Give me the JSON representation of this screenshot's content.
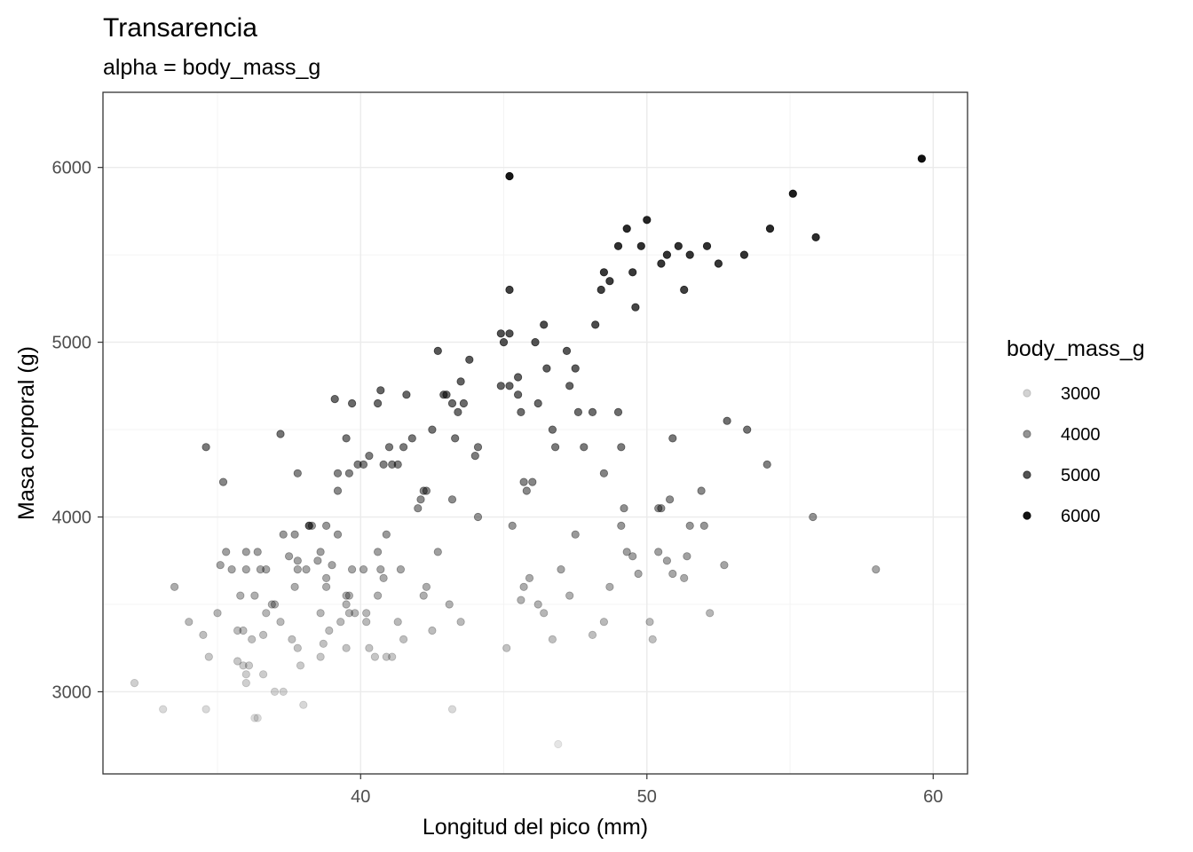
{
  "chart_data": {
    "type": "scatter",
    "title": "Transarencia",
    "subtitle": "alpha = body_mass_g",
    "xlabel": "Longitud del pico (mm)",
    "ylabel": "Masa corporal (g)",
    "xlim": [
      31.0,
      61.2
    ],
    "ylim": [
      2530,
      6430
    ],
    "x_ticks": [
      40,
      50,
      60
    ],
    "x_tick_labels": [
      "40",
      "50",
      "60"
    ],
    "y_ticks": [
      3000,
      4000,
      5000,
      6000
    ],
    "y_tick_labels": [
      "3000",
      "4000",
      "5000",
      "6000"
    ],
    "grid": true,
    "legend": {
      "title": "body_mass_g",
      "position": "right",
      "entries": [
        {
          "label": "3000",
          "value": 3000
        },
        {
          "label": "4000",
          "value": 4000
        },
        {
          "label": "5000",
          "value": 5000
        },
        {
          "label": "6000",
          "value": 6000
        }
      ]
    },
    "alpha_range": {
      "min_value": 2700,
      "max_value": 6300,
      "min_alpha": 0.1,
      "max_alpha": 1.0
    },
    "point_color": "#000000",
    "points": [
      [
        32.1,
        3050
      ],
      [
        33.1,
        2900
      ],
      [
        34.6,
        2900
      ],
      [
        33.5,
        3600
      ],
      [
        34.0,
        3400
      ],
      [
        34.5,
        3325
      ],
      [
        34.6,
        4400
      ],
      [
        34.7,
        3200
      ],
      [
        35.0,
        3450
      ],
      [
        35.1,
        3725
      ],
      [
        35.2,
        4200
      ],
      [
        35.3,
        3800
      ],
      [
        35.5,
        3700
      ],
      [
        35.7,
        3350
      ],
      [
        35.9,
        3350
      ],
      [
        35.8,
        3550
      ],
      [
        36.0,
        3800
      ],
      [
        36.0,
        3700
      ],
      [
        36.2,
        3300
      ],
      [
        36.3,
        3550
      ],
      [
        36.4,
        3800
      ],
      [
        36.5,
        3700
      ],
      [
        36.6,
        3325
      ],
      [
        35.7,
        3175
      ],
      [
        35.9,
        3150
      ],
      [
        36.0,
        3050
      ],
      [
        36.0,
        3100
      ],
      [
        36.1,
        3150
      ],
      [
        36.3,
        2850
      ],
      [
        36.4,
        2850
      ],
      [
        36.6,
        3100
      ],
      [
        36.7,
        3450
      ],
      [
        36.7,
        3700
      ],
      [
        36.9,
        3500
      ],
      [
        37.0,
        3500
      ],
      [
        37.0,
        3000
      ],
      [
        37.2,
        3400
      ],
      [
        37.3,
        3000
      ],
      [
        37.3,
        3900
      ],
      [
        37.5,
        3775
      ],
      [
        37.6,
        3300
      ],
      [
        37.7,
        3600
      ],
      [
        37.8,
        3250
      ],
      [
        37.8,
        3700
      ],
      [
        37.8,
        3750
      ],
      [
        37.9,
        3150
      ],
      [
        38.0,
        2925
      ],
      [
        38.1,
        3700
      ],
      [
        38.2,
        3950
      ],
      [
        38.3,
        3950
      ],
      [
        38.5,
        3750
      ],
      [
        38.6,
        3200
      ],
      [
        38.6,
        3800
      ],
      [
        38.6,
        3450
      ],
      [
        38.7,
        3275
      ],
      [
        38.8,
        3600
      ],
      [
        38.8,
        3650
      ],
      [
        38.9,
        3350
      ],
      [
        39.0,
        3725
      ],
      [
        39.2,
        3900
      ],
      [
        39.3,
        3400
      ],
      [
        39.5,
        3500
      ],
      [
        39.5,
        3250
      ],
      [
        39.5,
        3550
      ],
      [
        39.6,
        3550
      ],
      [
        39.6,
        3450
      ],
      [
        39.7,
        3700
      ],
      [
        39.8,
        3450
      ],
      [
        40.1,
        3700
      ],
      [
        40.2,
        3450
      ],
      [
        40.2,
        3400
      ],
      [
        40.3,
        3250
      ],
      [
        40.5,
        3200
      ],
      [
        40.6,
        3550
      ],
      [
        40.6,
        3800
      ],
      [
        40.7,
        3700
      ],
      [
        40.8,
        3650
      ],
      [
        40.9,
        3200
      ],
      [
        40.9,
        3900
      ],
      [
        41.1,
        3200
      ],
      [
        41.3,
        3400
      ],
      [
        41.4,
        3700
      ],
      [
        41.5,
        3300
      ],
      [
        42.2,
        3550
      ],
      [
        42.3,
        3600
      ],
      [
        43.1,
        3500
      ],
      [
        43.2,
        2900
      ],
      [
        43.5,
        3400
      ],
      [
        37.2,
        4475
      ],
      [
        37.8,
        4250
      ],
      [
        37.7,
        3900
      ],
      [
        38.2,
        3950
      ],
      [
        38.8,
        3950
      ],
      [
        39.1,
        4675
      ],
      [
        39.2,
        4150
      ],
      [
        39.2,
        4250
      ],
      [
        39.5,
        4450
      ],
      [
        39.6,
        4250
      ],
      [
        39.7,
        4650
      ],
      [
        39.9,
        4300
      ],
      [
        40.1,
        4300
      ],
      [
        40.3,
        4350
      ],
      [
        40.6,
        4650
      ],
      [
        40.7,
        4725
      ],
      [
        40.8,
        4300
      ],
      [
        41.0,
        4400
      ],
      [
        41.1,
        4300
      ],
      [
        41.3,
        4300
      ],
      [
        41.5,
        4400
      ],
      [
        41.6,
        4700
      ],
      [
        41.8,
        4450
      ],
      [
        42.0,
        4050
      ],
      [
        42.1,
        4100
      ],
      [
        42.2,
        4150
      ],
      [
        42.3,
        4150
      ],
      [
        42.5,
        4500
      ],
      [
        42.7,
        4950
      ],
      [
        42.9,
        4700
      ],
      [
        43.0,
        4700
      ],
      [
        43.2,
        4650
      ],
      [
        43.3,
        4450
      ],
      [
        43.4,
        4600
      ],
      [
        43.5,
        4775
      ],
      [
        43.6,
        4650
      ],
      [
        43.8,
        4900
      ],
      [
        44.0,
        4350
      ],
      [
        44.1,
        4400
      ],
      [
        44.9,
        4750
      ],
      [
        44.9,
        5050
      ],
      [
        45.0,
        5000
      ],
      [
        45.2,
        5050
      ],
      [
        45.2,
        4750
      ],
      [
        45.2,
        5300
      ],
      [
        45.2,
        5950
      ],
      [
        45.5,
        4800
      ],
      [
        45.5,
        4700
      ],
      [
        45.6,
        4600
      ],
      [
        45.7,
        4200
      ],
      [
        45.8,
        4150
      ],
      [
        46.1,
        5000
      ],
      [
        46.2,
        4650
      ],
      [
        46.4,
        5100
      ],
      [
        46.5,
        4850
      ],
      [
        46.7,
        4500
      ],
      [
        46.8,
        4400
      ],
      [
        47.2,
        4950
      ],
      [
        47.3,
        4750
      ],
      [
        47.5,
        4850
      ],
      [
        47.6,
        4600
      ],
      [
        47.8,
        4400
      ],
      [
        48.1,
        4600
      ],
      [
        48.2,
        5100
      ],
      [
        48.4,
        5300
      ],
      [
        48.5,
        5400
      ],
      [
        48.7,
        5350
      ],
      [
        49.0,
        5550
      ],
      [
        49.1,
        4400
      ],
      [
        49.3,
        5650
      ],
      [
        49.5,
        5400
      ],
      [
        49.6,
        5200
      ],
      [
        49.8,
        5550
      ],
      [
        50.0,
        5700
      ],
      [
        50.5,
        5450
      ],
      [
        50.7,
        5500
      ],
      [
        51.1,
        5550
      ],
      [
        51.3,
        5300
      ],
      [
        51.5,
        5500
      ],
      [
        52.1,
        5550
      ],
      [
        52.5,
        5450
      ],
      [
        53.4,
        5500
      ],
      [
        54.3,
        5650
      ],
      [
        55.1,
        5850
      ],
      [
        55.9,
        5600
      ],
      [
        59.6,
        6050
      ],
      [
        46.9,
        2700
      ],
      [
        45.1,
        3250
      ],
      [
        45.6,
        3525
      ],
      [
        45.7,
        3600
      ],
      [
        45.9,
        3650
      ],
      [
        46.2,
        3500
      ],
      [
        46.4,
        3450
      ],
      [
        46.7,
        3300
      ],
      [
        47.0,
        3700
      ],
      [
        47.5,
        3900
      ],
      [
        48.1,
        3325
      ],
      [
        48.5,
        3400
      ],
      [
        49.1,
        3950
      ],
      [
        49.3,
        3800
      ],
      [
        49.5,
        3775
      ],
      [
        49.7,
        3675
      ],
      [
        50.1,
        3400
      ],
      [
        50.2,
        3300
      ],
      [
        50.4,
        3800
      ],
      [
        50.5,
        4050
      ],
      [
        50.8,
        4100
      ],
      [
        50.9,
        3675
      ],
      [
        51.3,
        3650
      ],
      [
        51.5,
        3950
      ],
      [
        52.0,
        3950
      ],
      [
        52.2,
        3450
      ],
      [
        52.7,
        3725
      ],
      [
        58.0,
        3700
      ],
      [
        42.5,
        3350
      ],
      [
        42.7,
        3800
      ],
      [
        43.2,
        4100
      ],
      [
        44.1,
        4000
      ],
      [
        45.3,
        3950
      ],
      [
        46.0,
        4200
      ],
      [
        47.3,
        3550
      ],
      [
        48.5,
        4250
      ],
      [
        49.2,
        4050
      ],
      [
        50.4,
        4050
      ],
      [
        50.9,
        4450
      ],
      [
        51.9,
        4150
      ],
      [
        52.8,
        4550
      ],
      [
        53.5,
        4500
      ],
      [
        54.2,
        4300
      ],
      [
        55.8,
        4000
      ],
      [
        51.4,
        3775
      ],
      [
        50.7,
        3750
      ],
      [
        49.0,
        4600
      ],
      [
        48.7,
        3600
      ]
    ]
  }
}
